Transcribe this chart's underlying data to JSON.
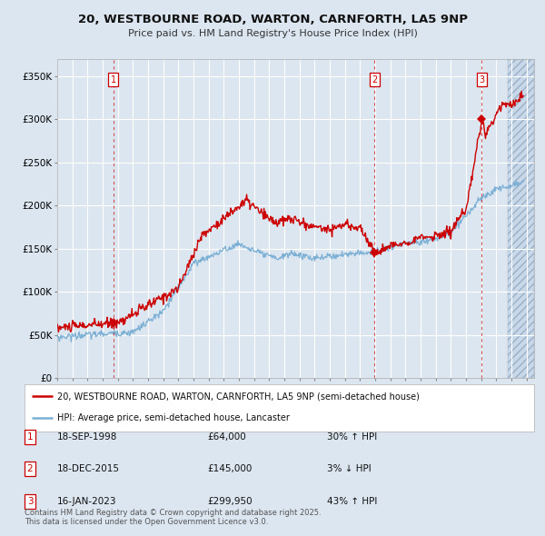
{
  "title1": "20, WESTBOURNE ROAD, WARTON, CARNFORTH, LA5 9NP",
  "title2": "Price paid vs. HM Land Registry's House Price Index (HPI)",
  "bg_color": "#dce6f0",
  "plot_bg_color": "#dce6f0",
  "grid_color": "#ffffff",
  "red_line_color": "#cc0000",
  "blue_line_color": "#7bafd4",
  "sale_labels": [
    "1",
    "2",
    "3"
  ],
  "sale_info": [
    [
      "1",
      "18-SEP-1998",
      "£64,000",
      "30% ↑ HPI"
    ],
    [
      "2",
      "18-DEC-2015",
      "£145,000",
      "3% ↓ HPI"
    ],
    [
      "3",
      "16-JAN-2023",
      "£299,950",
      "43% ↑ HPI"
    ]
  ],
  "ylabel_ticks": [
    0,
    50000,
    100000,
    150000,
    200000,
    250000,
    300000,
    350000
  ],
  "ylabel_labels": [
    "£0",
    "£50K",
    "£100K",
    "£150K",
    "£200K",
    "£250K",
    "£300K",
    "£350K"
  ],
  "xmin": 1995.0,
  "xmax": 2026.5,
  "ymin": 0,
  "ymax": 370000,
  "legend_red": "20, WESTBOURNE ROAD, WARTON, CARNFORTH, LA5 9NP (semi-detached house)",
  "legend_blue": "HPI: Average price, semi-detached house, Lancaster",
  "footer": "Contains HM Land Registry data © Crown copyright and database right 2025.\nThis data is licensed under the Open Government Licence v3.0."
}
